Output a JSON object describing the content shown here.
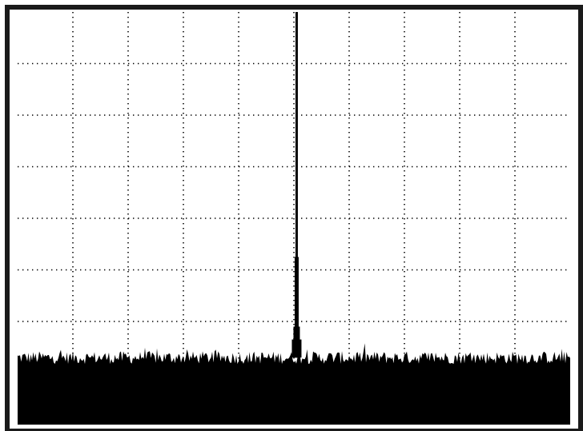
{
  "chart_data": {
    "type": "line",
    "title": "",
    "xlabel": "",
    "ylabel": "",
    "grid": true,
    "x_divisions": 10,
    "y_divisions": 8,
    "xlim": [
      0,
      10
    ],
    "ylim": [
      0,
      8
    ],
    "series": [
      {
        "noise_floor": 1.3,
        "noise_amplitude": 0.25,
        "peak": {
          "x": 5.05,
          "y": 8.0,
          "shoulders": [
            {
              "x": 5.05,
              "y": 3.25
            },
            {
              "x": 5.05,
              "y": 1.9
            },
            {
              "x": 5.05,
              "y": 1.65
            }
          ]
        }
      }
    ]
  },
  "colors": {
    "frame": "#1a1a1a",
    "trace": "#000000",
    "grid": "#000000",
    "background": "#ffffff"
  }
}
